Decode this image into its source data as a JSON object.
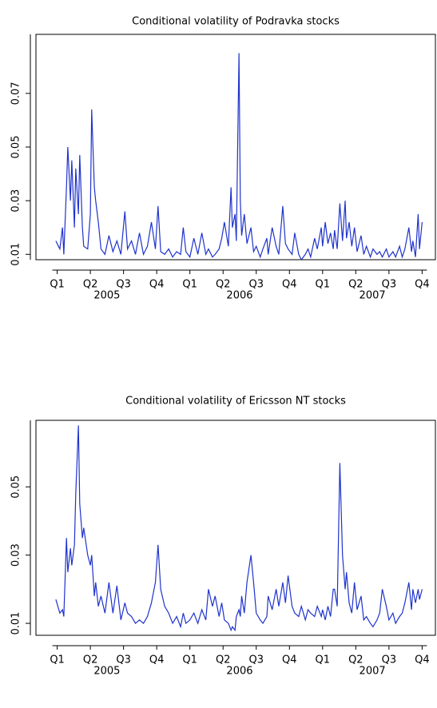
{
  "chart_data": [
    {
      "type": "line",
      "title": "Conditional volatility of Podravka stocks",
      "xlim": [
        2004.84,
        2007.85
      ],
      "xticks": [
        {
          "value": 2005.0,
          "label": "Q1"
        },
        {
          "value": 2005.25,
          "label": "Q2"
        },
        {
          "value": 2005.5,
          "label": "Q3"
        },
        {
          "value": 2005.75,
          "label": "Q4"
        },
        {
          "value": 2006.0,
          "label": "Q1"
        },
        {
          "value": 2006.25,
          "label": "Q2"
        },
        {
          "value": 2006.5,
          "label": "Q3"
        },
        {
          "value": 2006.75,
          "label": "Q4"
        },
        {
          "value": 2007.0,
          "label": "Q1"
        },
        {
          "value": 2007.25,
          "label": "Q2"
        },
        {
          "value": 2007.5,
          "label": "Q3"
        },
        {
          "value": 2007.75,
          "label": "Q4"
        }
      ],
      "year_labels": [
        {
          "value": 2005.375,
          "label": "2005"
        },
        {
          "value": 2006.375,
          "label": "2006"
        },
        {
          "value": 2007.375,
          "label": "2007"
        }
      ],
      "ylim": [
        0.008,
        0.092
      ],
      "yticks": [
        0.01,
        0.03,
        0.05,
        0.07
      ],
      "x": [
        2004.99,
        2005.02,
        2005.04,
        2005.05,
        2005.07,
        2005.08,
        2005.1,
        2005.11,
        2005.13,
        2005.14,
        2005.16,
        2005.17,
        2005.19,
        2005.2,
        2005.23,
        2005.25,
        2005.26,
        2005.28,
        2005.29,
        2005.31,
        2005.33,
        2005.36,
        2005.39,
        2005.42,
        2005.45,
        2005.48,
        2005.51,
        2005.53,
        2005.56,
        2005.59,
        2005.62,
        2005.65,
        2005.68,
        2005.71,
        2005.74,
        2005.76,
        2005.78,
        2005.81,
        2005.84,
        2005.87,
        2005.9,
        2005.93,
        2005.95,
        2005.97,
        2006.0,
        2006.03,
        2006.06,
        2006.09,
        2006.12,
        2006.14,
        2006.17,
        2006.19,
        2006.22,
        2006.24,
        2006.26,
        2006.29,
        2006.31,
        2006.32,
        2006.34,
        2006.35,
        2006.37,
        2006.38,
        2006.39,
        2006.41,
        2006.43,
        2006.46,
        2006.48,
        2006.5,
        2006.53,
        2006.55,
        2006.58,
        2006.59,
        2006.62,
        2006.65,
        2006.67,
        2006.7,
        2006.72,
        2006.74,
        2006.77,
        2006.79,
        2006.82,
        2006.84,
        2006.87,
        2006.89,
        2006.91,
        2006.94,
        2006.96,
        2006.99,
        2007.0,
        2007.02,
        2007.04,
        2007.06,
        2007.08,
        2007.09,
        2007.11,
        2007.13,
        2007.15,
        2007.17,
        2007.18,
        2007.2,
        2007.22,
        2007.24,
        2007.26,
        2007.29,
        2007.31,
        2007.33,
        2007.36,
        2007.38,
        2007.41,
        2007.43,
        2007.45,
        2007.48,
        2007.5,
        2007.53,
        2007.55,
        2007.58,
        2007.6,
        2007.62,
        2007.65,
        2007.67,
        2007.68,
        2007.7,
        2007.72,
        2007.73,
        2007.75
      ],
      "series": [
        {
          "color": "#1f33cc",
          "values": [
            0.015,
            0.012,
            0.02,
            0.01,
            0.035,
            0.05,
            0.03,
            0.045,
            0.02,
            0.042,
            0.025,
            0.047,
            0.02,
            0.013,
            0.012,
            0.025,
            0.064,
            0.035,
            0.03,
            0.022,
            0.012,
            0.01,
            0.017,
            0.011,
            0.015,
            0.01,
            0.026,
            0.012,
            0.015,
            0.01,
            0.018,
            0.01,
            0.013,
            0.022,
            0.012,
            0.028,
            0.011,
            0.01,
            0.012,
            0.009,
            0.011,
            0.01,
            0.02,
            0.011,
            0.009,
            0.016,
            0.01,
            0.018,
            0.01,
            0.012,
            0.009,
            0.01,
            0.012,
            0.016,
            0.022,
            0.013,
            0.035,
            0.02,
            0.025,
            0.015,
            0.085,
            0.03,
            0.017,
            0.025,
            0.014,
            0.02,
            0.011,
            0.013,
            0.009,
            0.012,
            0.016,
            0.01,
            0.02,
            0.013,
            0.01,
            0.028,
            0.014,
            0.012,
            0.01,
            0.018,
            0.01,
            0.008,
            0.01,
            0.012,
            0.009,
            0.016,
            0.012,
            0.02,
            0.013,
            0.022,
            0.014,
            0.018,
            0.012,
            0.019,
            0.012,
            0.029,
            0.015,
            0.03,
            0.016,
            0.022,
            0.013,
            0.02,
            0.011,
            0.017,
            0.01,
            0.013,
            0.009,
            0.012,
            0.01,
            0.011,
            0.009,
            0.012,
            0.009,
            0.011,
            0.009,
            0.013,
            0.009,
            0.012,
            0.02,
            0.011,
            0.015,
            0.009,
            0.025,
            0.012,
            0.022
          ]
        }
      ]
    },
    {
      "type": "line",
      "title": "Conditional volatility of Ericsson NT stocks",
      "xlim": [
        2004.84,
        2007.85
      ],
      "xticks": [
        {
          "value": 2005.0,
          "label": "Q1"
        },
        {
          "value": 2005.25,
          "label": "Q2"
        },
        {
          "value": 2005.5,
          "label": "Q3"
        },
        {
          "value": 2005.75,
          "label": "Q4"
        },
        {
          "value": 2006.0,
          "label": "Q1"
        },
        {
          "value": 2006.25,
          "label": "Q2"
        },
        {
          "value": 2006.5,
          "label": "Q3"
        },
        {
          "value": 2006.75,
          "label": "Q4"
        },
        {
          "value": 2007.0,
          "label": "Q1"
        },
        {
          "value": 2007.25,
          "label": "Q2"
        },
        {
          "value": 2007.5,
          "label": "Q3"
        },
        {
          "value": 2007.75,
          "label": "Q4"
        }
      ],
      "year_labels": [
        {
          "value": 2005.375,
          "label": "2005"
        },
        {
          "value": 2006.375,
          "label": "2006"
        },
        {
          "value": 2007.375,
          "label": "2007"
        }
      ],
      "ylim": [
        0.0065,
        0.0695
      ],
      "yticks": [
        0.01,
        0.03,
        0.05
      ],
      "x": [
        2004.99,
        2005.02,
        2005.04,
        2005.05,
        2005.07,
        2005.08,
        2005.1,
        2005.11,
        2005.13,
        2005.14,
        2005.16,
        2005.17,
        2005.19,
        2005.2,
        2005.23,
        2005.25,
        2005.26,
        2005.28,
        2005.29,
        2005.31,
        2005.33,
        2005.36,
        2005.39,
        2005.42,
        2005.45,
        2005.48,
        2005.51,
        2005.53,
        2005.56,
        2005.59,
        2005.62,
        2005.65,
        2005.68,
        2005.71,
        2005.74,
        2005.76,
        2005.78,
        2005.81,
        2005.84,
        2005.87,
        2005.9,
        2005.93,
        2005.95,
        2005.97,
        2006.0,
        2006.03,
        2006.06,
        2006.09,
        2006.12,
        2006.14,
        2006.17,
        2006.19,
        2006.22,
        2006.24,
        2006.26,
        2006.29,
        2006.31,
        2006.32,
        2006.34,
        2006.35,
        2006.37,
        2006.38,
        2006.39,
        2006.41,
        2006.43,
        2006.46,
        2006.48,
        2006.5,
        2006.53,
        2006.55,
        2006.58,
        2006.59,
        2006.62,
        2006.65,
        2006.67,
        2006.7,
        2006.72,
        2006.74,
        2006.77,
        2006.79,
        2006.82,
        2006.84,
        2006.87,
        2006.89,
        2006.91,
        2006.94,
        2006.96,
        2006.99,
        2007.0,
        2007.02,
        2007.04,
        2007.06,
        2007.08,
        2007.09,
        2007.11,
        2007.13,
        2007.15,
        2007.17,
        2007.18,
        2007.2,
        2007.22,
        2007.24,
        2007.26,
        2007.29,
        2007.31,
        2007.33,
        2007.36,
        2007.38,
        2007.41,
        2007.43,
        2007.45,
        2007.48,
        2007.5,
        2007.53,
        2007.55,
        2007.58,
        2007.6,
        2007.62,
        2007.65,
        2007.67,
        2007.68,
        2007.7,
        2007.72,
        2007.73,
        2007.75
      ],
      "series": [
        {
          "color": "#1f33cc",
          "values": [
            0.017,
            0.013,
            0.014,
            0.012,
            0.035,
            0.025,
            0.032,
            0.027,
            0.033,
            0.048,
            0.068,
            0.045,
            0.035,
            0.038,
            0.03,
            0.027,
            0.03,
            0.018,
            0.022,
            0.015,
            0.018,
            0.013,
            0.022,
            0.013,
            0.021,
            0.011,
            0.016,
            0.013,
            0.012,
            0.01,
            0.011,
            0.01,
            0.012,
            0.016,
            0.022,
            0.033,
            0.02,
            0.015,
            0.013,
            0.01,
            0.012,
            0.009,
            0.013,
            0.01,
            0.011,
            0.013,
            0.01,
            0.014,
            0.011,
            0.02,
            0.015,
            0.018,
            0.012,
            0.016,
            0.011,
            0.01,
            0.008,
            0.009,
            0.008,
            0.012,
            0.014,
            0.012,
            0.018,
            0.013,
            0.022,
            0.03,
            0.022,
            0.013,
            0.011,
            0.01,
            0.012,
            0.018,
            0.014,
            0.02,
            0.015,
            0.022,
            0.016,
            0.024,
            0.015,
            0.013,
            0.012,
            0.015,
            0.011,
            0.014,
            0.013,
            0.012,
            0.015,
            0.012,
            0.014,
            0.011,
            0.015,
            0.012,
            0.02,
            0.02,
            0.015,
            0.057,
            0.03,
            0.02,
            0.025,
            0.016,
            0.013,
            0.022,
            0.014,
            0.018,
            0.011,
            0.012,
            0.01,
            0.009,
            0.011,
            0.013,
            0.02,
            0.015,
            0.011,
            0.013,
            0.01,
            0.012,
            0.013,
            0.016,
            0.022,
            0.014,
            0.02,
            0.016,
            0.02,
            0.017,
            0.02
          ]
        }
      ]
    }
  ]
}
